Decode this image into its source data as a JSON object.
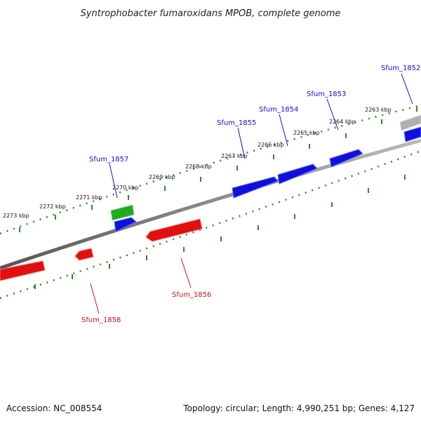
{
  "title": "Syntrophobacter fumaroxidans MPOB, complete genome",
  "footer": {
    "accession": "Accession: NC_008554",
    "summary": "Topology: circular; Length: 4,990,251 bp; Genes: 4,127"
  },
  "colors": {
    "forward_gene": "#1010dd",
    "reverse_gene": "#e01010",
    "rna_gene": "#22aa22",
    "other_gene": "#aaaaaa",
    "backbone": "#888888",
    "ticks": "#2a8a2a"
  },
  "ticks": [
    "2273 kbp",
    "2272 kbp",
    "2271 kbp",
    "2270 kbp",
    "2269 kbp",
    "2268 kbp",
    "2267 kbp",
    "2266 kbp",
    "2265 kbp",
    "2264 kbp",
    "2263 kbp"
  ],
  "genes": {
    "sfum_1852": "Sfum_1852",
    "sfum_1853": "Sfum_1853",
    "sfum_1854": "Sfum_1854",
    "sfum_1855": "Sfum_1855",
    "sfum_1856": "Sfum_1856",
    "sfum_1857": "Sfum_1857",
    "sfum_1858": "Sfum_1858"
  }
}
